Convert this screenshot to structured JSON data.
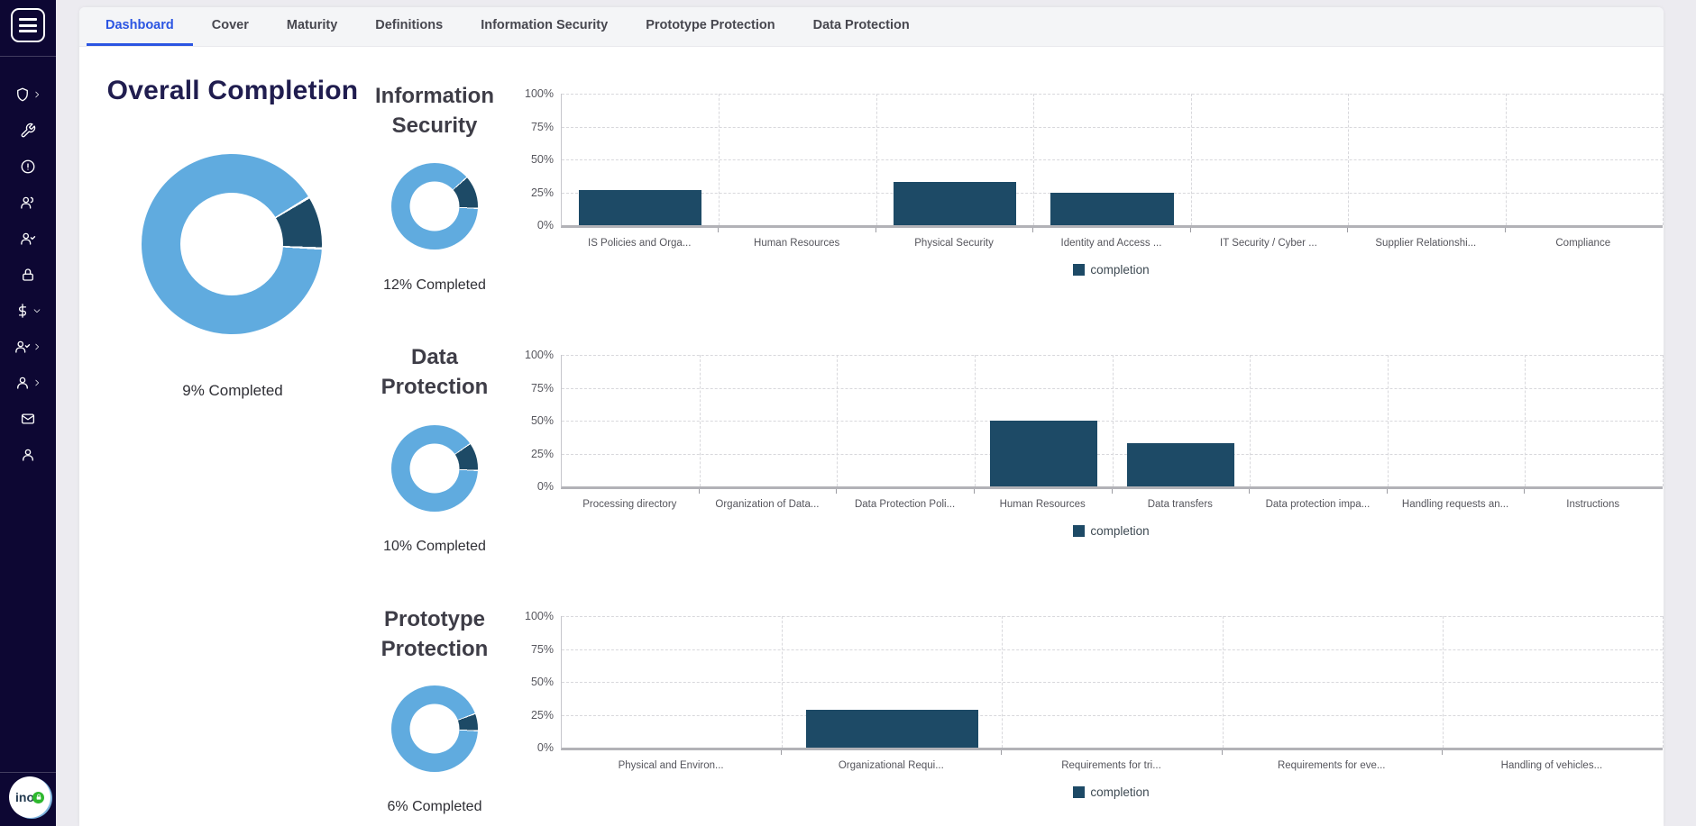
{
  "colors": {
    "sidebar_bg": "#0d0733",
    "page_bg": "#ecebf0",
    "card_bg": "#ffffff",
    "tabbar_bg": "#f4f5f7",
    "active_tab_blue": "#2b55e2",
    "tab_text": "#47474f",
    "donut_light": "#60abdf",
    "donut_dark": "#1d4a66",
    "bar": "#1d4a66",
    "overall_title": "#201d4f",
    "section_title": "#3e3d47",
    "logo_lock_green": "#2eb82e"
  },
  "sidebar": {
    "menu_icon": "hamburger-menu",
    "items": [
      {
        "icon": "shield",
        "chevron": "right"
      },
      {
        "icon": "wrench"
      },
      {
        "icon": "alert-circle"
      },
      {
        "icon": "users"
      },
      {
        "icon": "user-check"
      },
      {
        "icon": "lock"
      },
      {
        "icon": "dollar",
        "chevron": "down"
      },
      {
        "icon": "user-check",
        "chevron": "right"
      },
      {
        "icon": "user",
        "chevron": "right"
      },
      {
        "icon": "mail"
      },
      {
        "icon": "user"
      }
    ],
    "logo_text": "ino"
  },
  "tabs": {
    "active": "Dashboard",
    "items": [
      "Dashboard",
      "Cover",
      "Maturity",
      "Definitions",
      "Information Security",
      "Prototype Protection",
      "Data Protection"
    ]
  },
  "overall": {
    "title": "Overall Completion",
    "percent": 9,
    "caption": "9% Completed"
  },
  "sections": [
    {
      "title": "Information\nSecurity",
      "percent": 12,
      "caption": "12% Completed",
      "chart": {
        "type": "bar",
        "legend": "completion",
        "yticks": [
          "100%",
          "75%",
          "50%",
          "25%",
          "0%"
        ],
        "ymax": 100,
        "categories": [
          "IS Policies and Orga...",
          "Human Resources",
          "Physical Security",
          "Identity and Access ...",
          "IT Security / Cyber ...",
          "Supplier Relationshi...",
          "Compliance"
        ],
        "values": [
          27,
          0,
          33,
          25,
          0,
          0,
          0
        ]
      }
    },
    {
      "title": "Data\nProtection",
      "percent": 10,
      "caption": "10% Completed",
      "chart": {
        "type": "bar",
        "legend": "completion",
        "yticks": [
          "100%",
          "75%",
          "50%",
          "25%",
          "0%"
        ],
        "ymax": 100,
        "categories": [
          "Processing directory",
          "Organization of Data...",
          "Data Protection Poli...",
          "Human Resources",
          "Data transfers",
          "Data protection impa...",
          "Handling requests an...",
          "Instructions"
        ],
        "values": [
          0,
          0,
          0,
          50,
          33,
          0,
          0,
          0
        ]
      }
    },
    {
      "title": "Prototype\nProtection",
      "percent": 6,
      "caption": "6% Completed",
      "chart": {
        "type": "bar",
        "legend": "completion",
        "yticks": [
          "100%",
          "75%",
          "50%",
          "25%",
          "0%"
        ],
        "ymax": 100,
        "categories": [
          "Physical and Environ...",
          "Organizational Requi...",
          "Requirements for tri...",
          "Requirements for eve...",
          "Handling of vehicles..."
        ],
        "values": [
          0,
          29,
          0,
          0,
          0
        ]
      }
    }
  ]
}
